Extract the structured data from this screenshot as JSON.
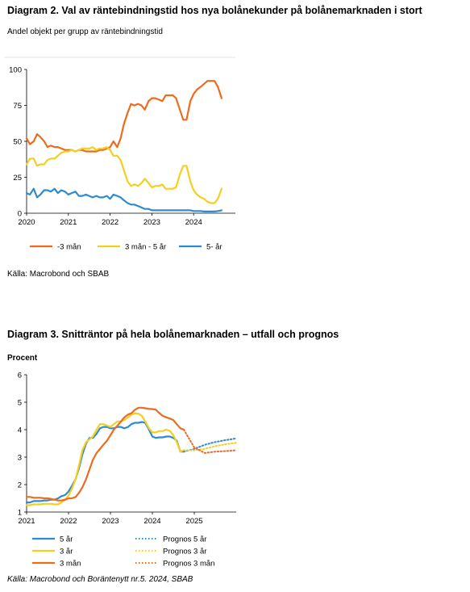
{
  "chart_data": [
    {
      "type": "line",
      "title": "Diagram 2. Val av räntebindningstid hos nya bolånekunder på bolånemarknaden i stort",
      "subtitle": "Andel objekt per grupp av räntebindningstid",
      "source": "Källa: Macrobond och SBAB",
      "ylim": [
        0,
        100
      ],
      "yticks": [
        "0",
        "25",
        "50",
        "75",
        "100"
      ],
      "xlim": [
        2020,
        2025
      ],
      "xticks": [
        "2020",
        "2021",
        "2022",
        "2023",
        "2024"
      ],
      "legend_position": "bottom",
      "series": [
        {
          "name": "-3 mån",
          "color": "#ED6B1F",
          "style": "solid",
          "x": [
            2020.0,
            2020.08,
            2020.17,
            2020.25,
            2020.33,
            2020.42,
            2020.5,
            2020.58,
            2020.67,
            2020.75,
            2020.83,
            2020.92,
            2021.0,
            2021.08,
            2021.17,
            2021.25,
            2021.33,
            2021.42,
            2021.5,
            2021.58,
            2021.67,
            2021.75,
            2021.83,
            2021.92,
            2022.0,
            2022.08,
            2022.17,
            2022.25,
            2022.33,
            2022.42,
            2022.5,
            2022.58,
            2022.67,
            2022.75,
            2022.83,
            2022.92,
            2023.0,
            2023.08,
            2023.17,
            2023.25,
            2023.33,
            2023.42,
            2023.5,
            2023.58,
            2023.67,
            2023.75,
            2023.83,
            2023.92,
            2024.0,
            2024.08,
            2024.17,
            2024.25,
            2024.33,
            2024.42,
            2024.5,
            2024.58,
            2024.67
          ],
          "values": [
            52,
            48,
            50,
            55,
            53,
            50,
            46,
            47,
            46,
            46,
            45,
            44,
            44,
            44,
            43,
            44,
            44,
            43,
            43,
            43,
            43,
            44,
            44,
            45,
            46,
            50,
            46,
            52,
            62,
            70,
            76,
            75,
            76,
            75,
            72,
            78,
            80,
            80,
            79,
            78,
            82,
            82,
            82,
            80,
            72,
            65,
            65,
            78,
            83,
            86,
            88,
            90,
            92,
            92,
            92,
            88,
            80
          ]
        },
        {
          "name": "3 mån - 5 år",
          "color": "#F5CF1F",
          "style": "solid",
          "x": [
            2020.0,
            2020.08,
            2020.17,
            2020.25,
            2020.33,
            2020.42,
            2020.5,
            2020.58,
            2020.67,
            2020.75,
            2020.83,
            2020.92,
            2021.0,
            2021.08,
            2021.17,
            2021.25,
            2021.33,
            2021.42,
            2021.5,
            2021.58,
            2021.67,
            2021.75,
            2021.83,
            2021.92,
            2022.0,
            2022.08,
            2022.17,
            2022.25,
            2022.33,
            2022.42,
            2022.5,
            2022.58,
            2022.67,
            2022.75,
            2022.83,
            2022.92,
            2023.0,
            2023.08,
            2023.17,
            2023.25,
            2023.33,
            2023.42,
            2023.5,
            2023.58,
            2023.67,
            2023.75,
            2023.83,
            2023.92,
            2024.0,
            2024.08,
            2024.17,
            2024.25,
            2024.33,
            2024.42,
            2024.5,
            2024.58,
            2024.67
          ],
          "values": [
            34,
            38,
            38,
            33,
            34,
            34,
            37,
            38,
            38,
            40,
            42,
            43,
            43,
            44,
            43,
            44,
            45,
            45,
            45,
            46,
            44,
            45,
            45,
            46,
            44,
            40,
            40,
            37,
            30,
            22,
            19,
            20,
            19,
            21,
            24,
            21,
            18,
            19,
            19,
            20,
            17,
            17,
            17,
            18,
            27,
            33,
            33,
            22,
            16,
            13,
            11,
            10,
            8,
            7,
            7,
            10,
            17
          ]
        },
        {
          "name": "5- år",
          "color": "#2E8BD0",
          "style": "solid",
          "x": [
            2020.0,
            2020.08,
            2020.17,
            2020.25,
            2020.33,
            2020.42,
            2020.5,
            2020.58,
            2020.67,
            2020.75,
            2020.83,
            2020.92,
            2021.0,
            2021.08,
            2021.17,
            2021.25,
            2021.33,
            2021.42,
            2021.5,
            2021.58,
            2021.67,
            2021.75,
            2021.83,
            2021.92,
            2022.0,
            2022.08,
            2022.17,
            2022.25,
            2022.33,
            2022.42,
            2022.5,
            2022.58,
            2022.67,
            2022.75,
            2022.83,
            2022.92,
            2023.0,
            2023.08,
            2023.17,
            2023.25,
            2023.33,
            2023.42,
            2023.5,
            2023.58,
            2023.67,
            2023.75,
            2023.83,
            2023.92,
            2024.0,
            2024.08,
            2024.17,
            2024.25,
            2024.33,
            2024.42,
            2024.5,
            2024.58,
            2024.67
          ],
          "values": [
            14,
            13,
            17,
            11,
            13,
            16,
            16,
            15,
            17,
            14,
            16,
            15,
            13,
            14,
            15,
            12,
            12,
            13,
            12,
            11,
            12,
            11,
            11,
            12,
            10,
            13,
            12,
            11,
            9,
            7,
            6,
            6,
            5,
            4,
            3,
            3,
            2,
            2,
            2,
            2,
            2,
            2,
            2,
            2,
            2,
            2,
            2,
            2,
            1.5,
            1.5,
            1.5,
            1.2,
            1.2,
            1.2,
            1.2,
            1.5,
            2
          ]
        }
      ]
    },
    {
      "type": "line",
      "title": "Diagram 3. Snitträntor på hela bolånemarknaden – utfall och prognos",
      "subtitle": "Procent",
      "source": "Källa: Macrobond och Boräntenytt nr.5. 2024, SBAB",
      "ylim": [
        1,
        6
      ],
      "yticks": [
        "1",
        "2",
        "3",
        "4",
        "5",
        "6"
      ],
      "xlim": [
        2021,
        2026
      ],
      "xticks": [
        "2021",
        "2022",
        "2023",
        "2024",
        "2025"
      ],
      "legend_position": "bottom",
      "series": [
        {
          "name": "5 år",
          "color": "#2E8BD0",
          "style": "solid",
          "x": [
            2021.0,
            2021.08,
            2021.17,
            2021.25,
            2021.33,
            2021.42,
            2021.5,
            2021.58,
            2021.67,
            2021.75,
            2021.83,
            2021.92,
            2022.0,
            2022.08,
            2022.17,
            2022.25,
            2022.33,
            2022.42,
            2022.5,
            2022.58,
            2022.67,
            2022.75,
            2022.83,
            2022.92,
            2023.0,
            2023.08,
            2023.17,
            2023.25,
            2023.33,
            2023.42,
            2023.5,
            2023.58,
            2023.67,
            2023.75,
            2023.83,
            2023.92,
            2024.0,
            2024.08,
            2024.17,
            2024.25,
            2024.33,
            2024.42,
            2024.5,
            2024.58,
            2024.67,
            2024.75
          ],
          "values": [
            1.35,
            1.35,
            1.4,
            1.4,
            1.4,
            1.42,
            1.42,
            1.45,
            1.45,
            1.5,
            1.58,
            1.62,
            1.75,
            1.95,
            2.2,
            2.6,
            3.1,
            3.5,
            3.7,
            3.7,
            3.85,
            4.05,
            4.1,
            4.1,
            4.05,
            4.05,
            4.1,
            4.1,
            4.05,
            4.1,
            4.2,
            4.25,
            4.25,
            4.28,
            4.25,
            4.0,
            3.75,
            3.7,
            3.72,
            3.72,
            3.75,
            3.75,
            3.7,
            3.6,
            3.2,
            3.2
          ]
        },
        {
          "name": "3 år",
          "color": "#F5CF1F",
          "style": "solid",
          "x": [
            2021.0,
            2021.08,
            2021.17,
            2021.25,
            2021.33,
            2021.42,
            2021.5,
            2021.58,
            2021.67,
            2021.75,
            2021.83,
            2021.92,
            2022.0,
            2022.08,
            2022.17,
            2022.25,
            2022.33,
            2022.42,
            2022.5,
            2022.58,
            2022.67,
            2022.75,
            2022.83,
            2022.92,
            2023.0,
            2023.08,
            2023.17,
            2023.25,
            2023.33,
            2023.42,
            2023.5,
            2023.58,
            2023.67,
            2023.75,
            2023.83,
            2023.92,
            2024.0,
            2024.08,
            2024.17,
            2024.25,
            2024.33,
            2024.42,
            2024.5,
            2024.58,
            2024.67,
            2024.75
          ],
          "values": [
            1.25,
            1.25,
            1.28,
            1.28,
            1.28,
            1.3,
            1.3,
            1.3,
            1.28,
            1.28,
            1.35,
            1.45,
            1.6,
            1.85,
            2.2,
            2.7,
            3.25,
            3.55,
            3.65,
            3.75,
            4.0,
            4.2,
            4.2,
            4.15,
            4.1,
            4.2,
            4.3,
            4.3,
            4.35,
            4.45,
            4.55,
            4.6,
            4.58,
            4.5,
            4.3,
            4.05,
            3.9,
            3.9,
            3.95,
            3.95,
            4.0,
            3.95,
            3.8,
            3.55,
            3.2,
            3.25
          ]
        },
        {
          "name": "3 mån",
          "color": "#ED6B1F",
          "style": "solid",
          "x": [
            2021.0,
            2021.08,
            2021.17,
            2021.25,
            2021.33,
            2021.42,
            2021.5,
            2021.58,
            2021.67,
            2021.75,
            2021.83,
            2021.92,
            2022.0,
            2022.08,
            2022.17,
            2022.25,
            2022.33,
            2022.42,
            2022.5,
            2022.58,
            2022.67,
            2022.75,
            2022.83,
            2022.92,
            2023.0,
            2023.08,
            2023.17,
            2023.25,
            2023.33,
            2023.42,
            2023.5,
            2023.58,
            2023.67,
            2023.75,
            2023.83,
            2023.92,
            2024.0,
            2024.08,
            2024.17,
            2024.25,
            2024.33,
            2024.42,
            2024.5,
            2024.58,
            2024.67,
            2024.75
          ],
          "values": [
            1.55,
            1.55,
            1.52,
            1.52,
            1.52,
            1.5,
            1.5,
            1.48,
            1.45,
            1.42,
            1.42,
            1.45,
            1.5,
            1.5,
            1.55,
            1.7,
            1.9,
            2.2,
            2.55,
            2.9,
            3.15,
            3.3,
            3.45,
            3.6,
            3.8,
            4.0,
            4.15,
            4.3,
            4.45,
            4.55,
            4.6,
            4.72,
            4.8,
            4.8,
            4.78,
            4.76,
            4.75,
            4.73,
            4.6,
            4.5,
            4.45,
            4.4,
            4.35,
            4.2,
            4.05,
            4.0
          ]
        },
        {
          "name": "Prognos 5 år",
          "color": "#2E8BD0",
          "style": "dotted",
          "x": [
            2024.75,
            2025.0,
            2025.25,
            2025.5,
            2025.75,
            2026.0
          ],
          "values": [
            3.2,
            3.3,
            3.45,
            3.55,
            3.62,
            3.68
          ]
        },
        {
          "name": "Prognos 3 år",
          "color": "#F5CF1F",
          "style": "dotted",
          "x": [
            2024.75,
            2025.0,
            2025.25,
            2025.5,
            2025.75,
            2026.0
          ],
          "values": [
            3.25,
            3.25,
            3.3,
            3.4,
            3.47,
            3.52
          ]
        },
        {
          "name": "Prognos 3 mån",
          "color": "#ED6B1F",
          "style": "dotted",
          "x": [
            2024.75,
            2025.0,
            2025.25,
            2025.5,
            2025.75,
            2026.0
          ],
          "values": [
            4.0,
            3.35,
            3.15,
            3.2,
            3.22,
            3.25
          ]
        }
      ]
    }
  ]
}
